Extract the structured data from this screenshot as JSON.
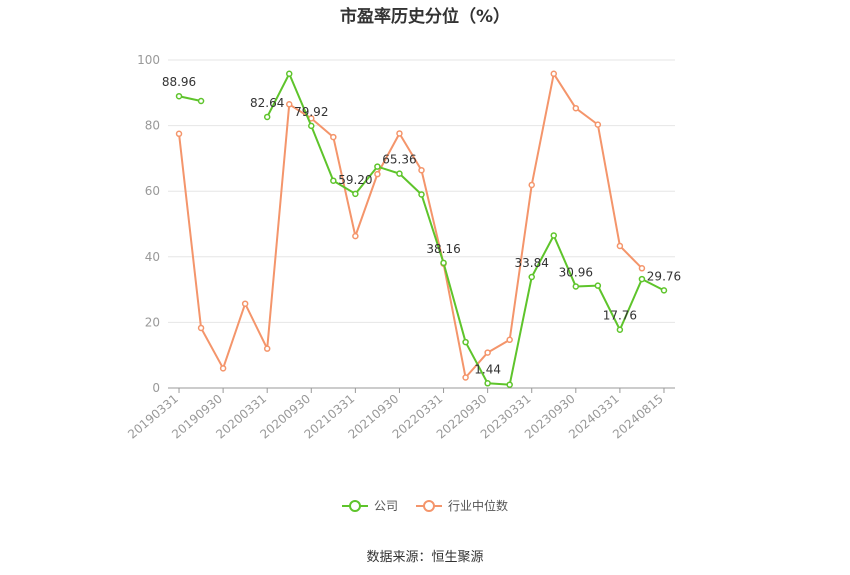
{
  "title": "市盈率历史分位（%）",
  "source": "数据来源：恒生聚源",
  "colors": {
    "company": "#5ec42b",
    "industry": "#f4956b"
  },
  "chart_data": {
    "type": "line",
    "title": "市盈率历史分位（%）",
    "ylim": [
      0,
      100
    ],
    "yticks": [
      0,
      20,
      40,
      60,
      80,
      100
    ],
    "grid": true,
    "legend_position": "bottom",
    "x_tick_labels": [
      "20190331",
      "20190930",
      "20200331",
      "20200930",
      "20210331",
      "20210930",
      "20220331",
      "20220930",
      "20230331",
      "20230930",
      "20240331",
      "20240815"
    ],
    "series": [
      {
        "name": "公司",
        "color": "#5ec42b",
        "values": [
          88.96,
          87.5,
          null,
          null,
          82.64,
          95.8,
          79.92,
          63.2,
          59.2,
          67.5,
          65.36,
          59.0,
          38.16,
          14.0,
          1.44,
          1.0,
          33.84,
          46.5,
          30.96,
          31.2,
          17.76,
          33.2,
          29.76
        ],
        "labels": [
          {
            "index": 0,
            "text": "88.96"
          },
          {
            "index": 4,
            "text": "82.64"
          },
          {
            "index": 6,
            "text": "79.92"
          },
          {
            "index": 8,
            "text": "59.20"
          },
          {
            "index": 10,
            "text": "65.36"
          },
          {
            "index": 12,
            "text": "38.16"
          },
          {
            "index": 14,
            "text": "1.44"
          },
          {
            "index": 16,
            "text": "33.84"
          },
          {
            "index": 18,
            "text": "30.96"
          },
          {
            "index": 20,
            "text": "17.76"
          },
          {
            "index": 22,
            "text": "29.76"
          }
        ]
      },
      {
        "name": "行业中位数",
        "color": "#f4956b",
        "values": [
          77.5,
          18.3,
          6.0,
          25.7,
          12.0,
          86.5,
          82.2,
          76.5,
          46.3,
          65.2,
          77.6,
          66.4,
          37.9,
          3.2,
          10.8,
          14.7,
          61.9,
          95.8,
          85.3,
          80.3,
          43.3,
          36.5,
          null
        ]
      }
    ]
  }
}
